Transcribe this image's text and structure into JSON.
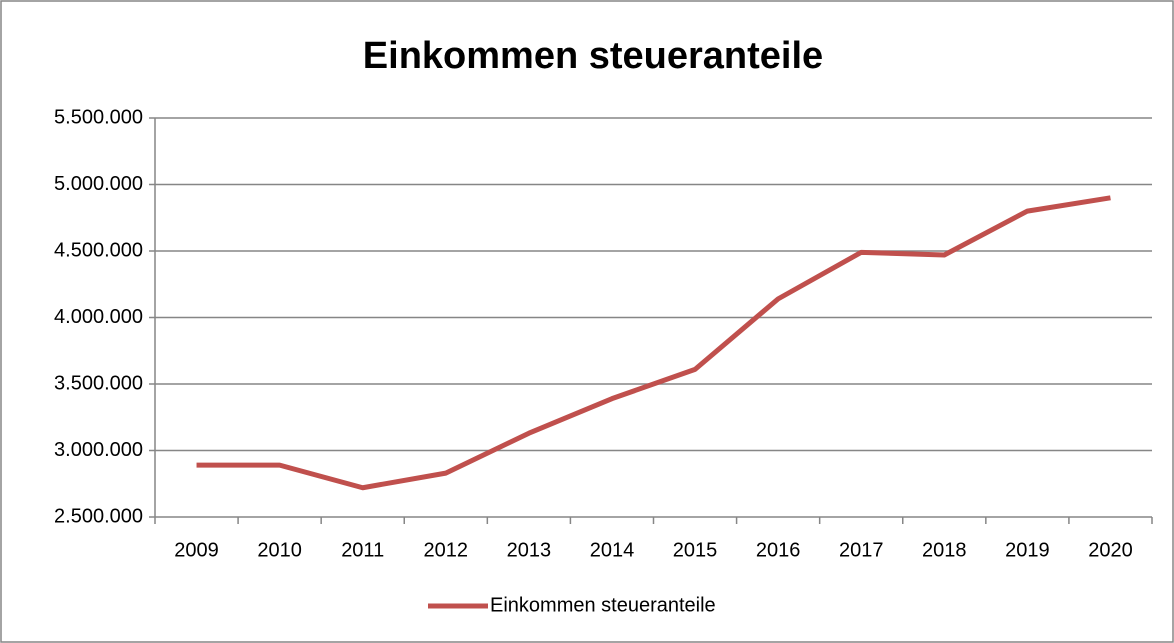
{
  "chart_data": {
    "type": "line",
    "title": "Einkommen steueranteile",
    "categories": [
      "2009",
      "2010",
      "2011",
      "2012",
      "2013",
      "2014",
      "2015",
      "2016",
      "2017",
      "2018",
      "2019",
      "2020"
    ],
    "series": [
      {
        "name": "Einkommen steueranteile",
        "color": "#c0504d",
        "values": [
          2890000,
          2890000,
          2720000,
          2830000,
          3130000,
          3390000,
          3610000,
          4140000,
          4490000,
          4470000,
          4800000,
          4900000
        ]
      }
    ],
    "ylim": [
      2500000,
      5500000
    ],
    "yticks": [
      {
        "value": 2500000,
        "label": "2.500.000"
      },
      {
        "value": 3000000,
        "label": "3.000.000"
      },
      {
        "value": 3500000,
        "label": "3.500.000"
      },
      {
        "value": 4000000,
        "label": "4.000.000"
      },
      {
        "value": 4500000,
        "label": "4.500.000"
      },
      {
        "value": 5000000,
        "label": "5.000.000"
      },
      {
        "value": 5500000,
        "label": "5.500.000"
      }
    ],
    "grid": true,
    "legend": "bottom"
  }
}
